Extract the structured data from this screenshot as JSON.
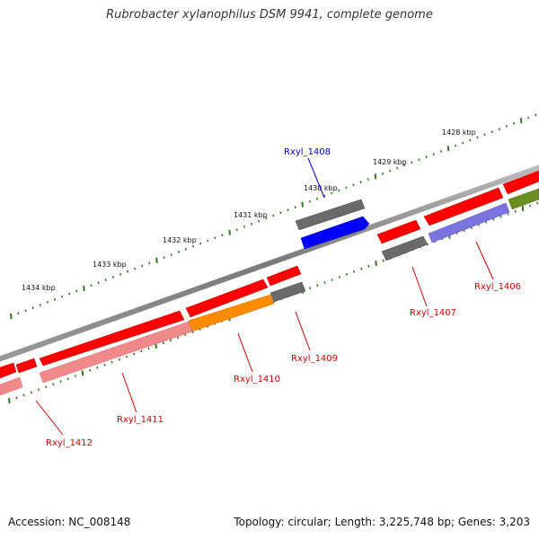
{
  "title": "Rubrobacter xylanophilus DSM 9941, complete genome",
  "footer": {
    "accession": "Accession: NC_008148",
    "summary": "Topology: circular; Length: 3,225,748 bp; Genes: 3,203"
  },
  "scale_labels": [
    "1428 kbp",
    "1429 kbp",
    "1430 kbp",
    "1431 kbp",
    "1432 kbp",
    "1433 kbp",
    "1434 kbp"
  ],
  "gene_labels": [
    {
      "name": "Rxyl_1408",
      "color": "#0000cc"
    },
    {
      "name": "Rxyl_1407",
      "color": "#cc0000"
    },
    {
      "name": "Rxyl_1406",
      "color": "#cc0000"
    },
    {
      "name": "Rxyl_1409",
      "color": "#cc0000"
    },
    {
      "name": "Rxyl_1410",
      "color": "#cc0000"
    },
    {
      "name": "Rxyl_1411",
      "color": "#cc0000"
    },
    {
      "name": "Rxyl_1412",
      "color": "#cc0000"
    }
  ],
  "colors": {
    "backbone": "#888888",
    "tick": "#2e7d1e",
    "gene_red": "#ff0000",
    "gene_grey": "#666666",
    "gene_blue": "#0000ff",
    "gene_pink": "#f08a8a",
    "gene_orange": "#ff8c00",
    "gene_lavender": "#7b73e0",
    "gene_olive": "#6b8e23"
  }
}
